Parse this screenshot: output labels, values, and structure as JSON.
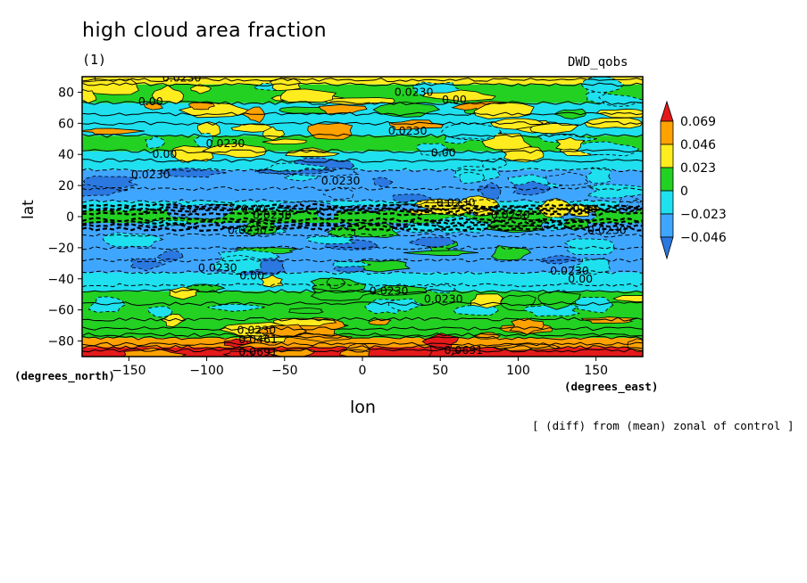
{
  "header": {
    "title": "high cloud area fraction",
    "subtitle": "(1)",
    "model": "DWD_qobs"
  },
  "footnote": "[ (diff) from (mean) zonal of control ]",
  "chart_data": {
    "type": "heatmap",
    "title": "high cloud area fraction",
    "xlabel": "lon",
    "ylabel": "lat",
    "xunits": "(degrees_east)",
    "yunits": "(degrees_north)",
    "xlim": [
      -180,
      180
    ],
    "ylim": [
      -90,
      90
    ],
    "xticks": [
      -150,
      -100,
      -50,
      0,
      50,
      100,
      150
    ],
    "yticks": [
      80,
      60,
      40,
      20,
      0,
      -20,
      -40,
      -60,
      -80
    ],
    "colorbar": {
      "levels": [
        -0.046,
        -0.023,
        0,
        0.023,
        0.046,
        0.069
      ],
      "labels": [
        "0.069",
        "0.046",
        "0.023",
        "0",
        "−0.023",
        "−0.046"
      ],
      "colors": {
        "below": "#2a78e0",
        "lt_-0.046": "#2a78e0",
        "-0.046_-0.023": "#3fa6ff",
        "-0.023_0": "#1ee0ee",
        "0_0.023": "#22d122",
        "0.023_0.046": "#ffec1e",
        "0.046_0.069": "#ffa200",
        "above": "#e41a1a"
      },
      "extend": "both"
    },
    "zonal_bands": [
      {
        "lat": [
          85,
          90
        ],
        "class": 0.023
      },
      {
        "lat": [
          73,
          85
        ],
        "class": 0.0
      },
      {
        "lat": [
          52,
          73
        ],
        "class": -0.023
      },
      {
        "lat": [
          42,
          52
        ],
        "class": 0.0
      },
      {
        "lat": [
          30,
          42
        ],
        "class": -0.023
      },
      {
        "lat": [
          10,
          30
        ],
        "class": -0.046
      },
      {
        "lat": [
          4,
          10
        ],
        "class": -0.023
      },
      {
        "lat": [
          -4,
          4
        ],
        "class": 0.0
      },
      {
        "lat": [
          -12,
          -4
        ],
        "class": -0.046
      },
      {
        "lat": [
          -36,
          -12
        ],
        "class": -0.046
      },
      {
        "lat": [
          -48,
          -36
        ],
        "class": -0.023
      },
      {
        "lat": [
          -66,
          -48
        ],
        "class": 0.0
      },
      {
        "lat": [
          -78,
          -66
        ],
        "class": 0.0
      },
      {
        "lat": [
          -84,
          -78
        ],
        "class": 0.046
      },
      {
        "lat": [
          -90,
          -84
        ],
        "class": 0.069
      }
    ],
    "contour_labels": [
      {
        "text": "0.0230",
        "lon": -116,
        "lat": 89
      },
      {
        "text": "0.00",
        "lon": -136,
        "lat": 74
      },
      {
        "text": "0.0230",
        "lon": 33,
        "lat": 80
      },
      {
        "text": "0.00",
        "lon": 59,
        "lat": 75
      },
      {
        "text": "0.0230",
        "lon": 29,
        "lat": 55
      },
      {
        "text": "0.0230",
        "lon": -88,
        "lat": 47
      },
      {
        "text": "0.00",
        "lon": -127,
        "lat": 40
      },
      {
        "text": "0.00",
        "lon": 52,
        "lat": 41
      },
      {
        "text": "0.0230",
        "lon": -136,
        "lat": 27
      },
      {
        "text": "0.0230",
        "lon": -14,
        "lat": 23
      },
      {
        "text": "0.0230",
        "lon": 60,
        "lat": 9
      },
      {
        "text": "0.0230",
        "lon": 95,
        "lat": 1
      },
      {
        "text": "0.00",
        "lon": 143,
        "lat": 5
      },
      {
        "text": "0.00",
        "lon": -70,
        "lat": 5
      },
      {
        "text": "0.0230",
        "lon": -58,
        "lat": 1
      },
      {
        "text": "0.0230",
        "lon": -74,
        "lat": -9
      },
      {
        "text": "0.0230",
        "lon": 157,
        "lat": -9
      },
      {
        "text": "0.0230",
        "lon": -93,
        "lat": -33
      },
      {
        "text": "0.00",
        "lon": -71,
        "lat": -38
      },
      {
        "text": "0.0230",
        "lon": 133,
        "lat": -35
      },
      {
        "text": "0.00",
        "lon": 140,
        "lat": -40
      },
      {
        "text": "0.0230",
        "lon": 17,
        "lat": -48
      },
      {
        "text": "0.0230",
        "lon": 52,
        "lat": -53
      },
      {
        "text": "0.0230",
        "lon": -68,
        "lat": -73
      },
      {
        "text": "0.0461",
        "lon": -67,
        "lat": -79
      },
      {
        "text": "0.0691",
        "lon": -67,
        "lat": -87
      },
      {
        "text": "0.0691",
        "lon": 65,
        "lat": -86
      }
    ]
  }
}
